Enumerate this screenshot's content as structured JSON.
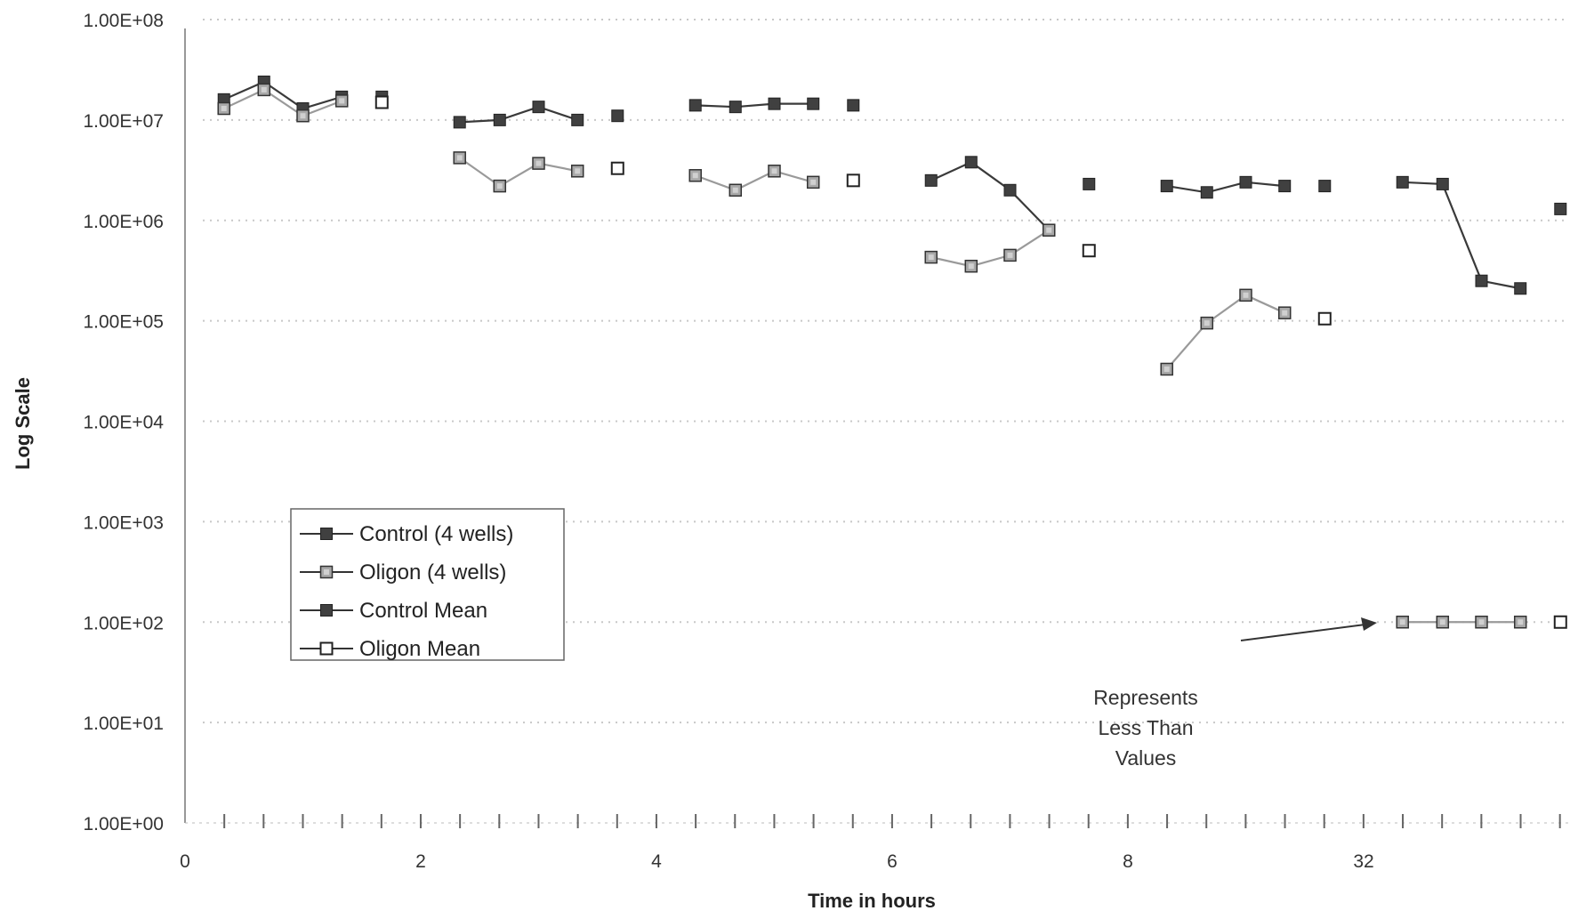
{
  "chart_data": {
    "type": "line",
    "title": "",
    "xlabel": "Time in hours",
    "ylabel": "Log Scale",
    "yscale": "log",
    "ylim": [
      1,
      100000000
    ],
    "y_tick_labels": [
      "1.00E+00",
      "1.00E+01",
      "1.00E+02",
      "1.00E+03",
      "1.00E+04",
      "1.00E+05",
      "1.00E+06",
      "1.00E+07",
      "1.00E+08"
    ],
    "x_tick_labels": [
      "0",
      "2",
      "4",
      "6",
      "8",
      "32"
    ],
    "grid": "dotted horizontal",
    "legend_position": "center-left",
    "legend": [
      "Control (4 wells)",
      "Oligon (4 wells)",
      "Control Mean",
      "Oligon Mean"
    ],
    "annotation": [
      "Represents",
      "Less Than",
      "Values"
    ],
    "series": [
      {
        "name": "Control (4 wells)",
        "color": "#3a3a3a",
        "marker": "filled-square",
        "segments": [
          [
            [
              0.33,
              16000000
            ],
            [
              0.67,
              24000000
            ],
            [
              1.0,
              13000000
            ],
            [
              1.33,
              17000000
            ]
          ],
          [
            [
              2.33,
              9500000
            ],
            [
              2.67,
              10000000
            ],
            [
              3.0,
              13500000
            ],
            [
              3.33,
              10000000
            ]
          ],
          [
            [
              4.33,
              14000000
            ],
            [
              4.67,
              13500000
            ],
            [
              5.0,
              14500000
            ],
            [
              5.33,
              14500000
            ]
          ],
          [
            [
              6.33,
              2500000
            ],
            [
              6.67,
              3800000
            ],
            [
              7.0,
              2000000
            ],
            [
              7.33,
              800000
            ]
          ],
          [
            [
              8.33,
              2200000
            ],
            [
              8.67,
              1900000
            ],
            [
              9.0,
              2400000
            ],
            [
              9.33,
              2200000
            ]
          ],
          [
            [
              10.33,
              2400000
            ],
            [
              10.67,
              2300000
            ],
            [
              11.0,
              250000
            ],
            [
              11.33,
              210000
            ]
          ]
        ]
      },
      {
        "name": "Oligon (4 wells)",
        "color": "#9a9a9a",
        "marker": "hatched-square",
        "segments": [
          [
            [
              0.33,
              13000000
            ],
            [
              0.67,
              20000000
            ],
            [
              1.0,
              11000000
            ],
            [
              1.33,
              15500000
            ]
          ],
          [
            [
              2.33,
              4200000
            ],
            [
              2.67,
              2200000
            ],
            [
              3.0,
              3700000
            ],
            [
              3.33,
              3100000
            ]
          ],
          [
            [
              4.33,
              2800000
            ],
            [
              4.67,
              2000000
            ],
            [
              5.0,
              3100000
            ],
            [
              5.33,
              2400000
            ]
          ],
          [
            [
              6.33,
              430000
            ],
            [
              6.67,
              350000
            ],
            [
              7.0,
              450000
            ],
            [
              7.33,
              800000
            ]
          ],
          [
            [
              8.33,
              33000
            ],
            [
              8.67,
              95000
            ],
            [
              9.0,
              180000
            ],
            [
              9.33,
              120000
            ]
          ],
          [
            [
              10.33,
              100
            ],
            [
              10.67,
              100
            ],
            [
              11.0,
              100
            ],
            [
              11.33,
              100
            ]
          ]
        ]
      },
      {
        "name": "Control Mean",
        "color": "#3a3a3a",
        "marker": "filled-square",
        "points": [
          [
            1.67,
            17000000
          ],
          [
            3.67,
            11000000
          ],
          [
            5.67,
            14000000
          ],
          [
            7.67,
            2300000
          ],
          [
            9.67,
            2200000
          ],
          [
            11.67,
            1300000
          ]
        ]
      },
      {
        "name": "Oligon Mean",
        "color": "#3a3a3a",
        "marker": "open-square",
        "points": [
          [
            1.67,
            15000000
          ],
          [
            3.67,
            3300000
          ],
          [
            5.67,
            2500000
          ],
          [
            7.67,
            500000
          ],
          [
            9.67,
            105000
          ],
          [
            11.67,
            100
          ]
        ]
      }
    ]
  }
}
